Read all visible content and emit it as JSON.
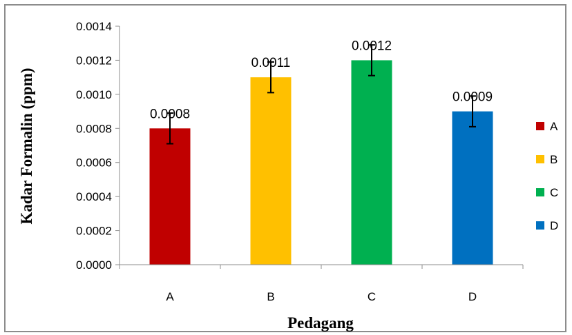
{
  "chart_data": {
    "type": "bar",
    "title": "",
    "xlabel": "Pedagang",
    "ylabel": "Kadar Formalin (ppm)",
    "categories": [
      "A",
      "B",
      "C",
      "D"
    ],
    "values": [
      0.0008,
      0.0011,
      0.0012,
      0.0009
    ],
    "data_labels": [
      "0.0008",
      "0.0011",
      "0.0012",
      "0.0009"
    ],
    "error": [
      9e-05,
      9e-05,
      9e-05,
      9e-05
    ],
    "colors": [
      "#c00000",
      "#ffc000",
      "#00b050",
      "#0070c0"
    ],
    "ylim": [
      0,
      0.0014
    ],
    "yticks": [
      "0.0000",
      "0.0002",
      "0.0004",
      "0.0006",
      "0.0008",
      "0.0010",
      "0.0012",
      "0.0014"
    ],
    "grid": false,
    "legend": {
      "placement": "right",
      "entries": [
        "A",
        "B",
        "C",
        "D"
      ]
    }
  }
}
